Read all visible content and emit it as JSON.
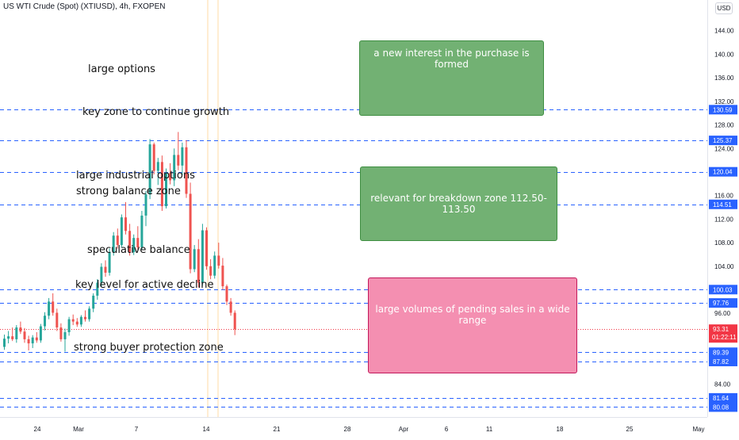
{
  "symbol_title": "US WTI Crude (Spot) (XTIUSD), 4h, FXOPEN",
  "currency": "USD",
  "colors": {
    "up": "#26a69a",
    "down": "#ef5350",
    "level_line": "#2962ff",
    "price_badge": "#2962ff",
    "current_badge": "#f23645",
    "green_box": "#72b173",
    "pink_box": "#f48fb1",
    "session_line": "#ff9800"
  },
  "annotations": {
    "large_options": "large options",
    "key_zone": "key zone to continue growth",
    "industrial_options": "large industrial options",
    "strong_balance": "strong balance zone",
    "speculative_balance": "speculative balance",
    "key_level_decline": "key level for active decline",
    "buyer_protection": "strong buyer protection zone"
  },
  "boxes": {
    "purchase_interest": "a new interest in the purchase is formed",
    "breakdown": "relevant for breakdown zone 112.50-113.50",
    "pending_sales": "large volumes of pending sales in a wide range"
  },
  "chart_data": {
    "type": "candlestick",
    "title": "US WTI Crude (Spot) (XTIUSD), 4h, FXOPEN",
    "ylim": [
      79.2,
      147.6
    ],
    "y_ticks": [
      84.0,
      88.0,
      92.0,
      96.0,
      100.0,
      104.0,
      108.0,
      112.0,
      116.0,
      120.0,
      124.0,
      128.0,
      132.0,
      136.0,
      140.0,
      144.0
    ],
    "x_ticks": [
      "24",
      "Mar",
      "7",
      "14",
      "21",
      "28",
      "Apr",
      "6",
      "11",
      "18",
      "25",
      "May"
    ],
    "level_lines": [
      {
        "value": 130.59,
        "label": "130.59"
      },
      {
        "value": 125.37,
        "label": "125.37"
      },
      {
        "value": 120.04,
        "label": "120.04"
      },
      {
        "value": 114.51,
        "label": "114.51"
      },
      {
        "value": 100.03,
        "label": "100.03"
      },
      {
        "value": 97.76,
        "label": "97.76"
      },
      {
        "value": 89.39,
        "label": "89.39"
      },
      {
        "value": 87.82,
        "label": "87.82"
      },
      {
        "value": 81.64,
        "label": "81.64"
      },
      {
        "value": 80.08,
        "label": "80.08"
      }
    ],
    "current_price": {
      "value": 93.31,
      "label": "93.31",
      "countdown": "01:22:11"
    },
    "candles_ohlc": [
      [
        90.3,
        92.4,
        89.8,
        91.7
      ],
      [
        91.7,
        93.0,
        90.9,
        92.1
      ],
      [
        92.1,
        93.6,
        91.3,
        91.6
      ],
      [
        91.6,
        94.0,
        91.0,
        93.6
      ],
      [
        93.6,
        94.6,
        92.5,
        92.9
      ],
      [
        92.9,
        93.5,
        91.0,
        91.6
      ],
      [
        91.6,
        92.2,
        89.7,
        90.9
      ],
      [
        90.9,
        92.3,
        90.1,
        91.9
      ],
      [
        91.9,
        92.8,
        91.0,
        91.4
      ],
      [
        91.4,
        94.2,
        91.0,
        93.8
      ],
      [
        93.8,
        96.2,
        93.1,
        95.6
      ],
      [
        95.6,
        98.6,
        95.0,
        98.0
      ],
      [
        98.0,
        99.4,
        95.6,
        96.1
      ],
      [
        96.1,
        96.8,
        93.0,
        93.6
      ],
      [
        93.6,
        94.3,
        91.2,
        91.6
      ],
      [
        91.6,
        93.4,
        89.5,
        92.8
      ],
      [
        92.8,
        95.4,
        92.2,
        95.0
      ],
      [
        95.0,
        95.8,
        94.0,
        94.6
      ],
      [
        94.6,
        95.2,
        93.7,
        94.1
      ],
      [
        94.1,
        95.7,
        93.7,
        95.4
      ],
      [
        95.4,
        96.5,
        94.6,
        95.0
      ],
      [
        95.0,
        97.2,
        94.6,
        96.8
      ],
      [
        96.8,
        99.4,
        96.2,
        99.0
      ],
      [
        99.0,
        101.8,
        98.3,
        101.2
      ],
      [
        101.2,
        104.5,
        100.6,
        103.9
      ],
      [
        103.9,
        105.0,
        102.2,
        102.9
      ],
      [
        102.9,
        107.0,
        102.4,
        106.4
      ],
      [
        106.4,
        109.8,
        105.8,
        109.2
      ],
      [
        109.2,
        110.4,
        107.0,
        107.6
      ],
      [
        107.6,
        112.8,
        107.2,
        112.3
      ],
      [
        112.3,
        114.9,
        109.4,
        110.0
      ],
      [
        110.0,
        111.2,
        105.8,
        106.4
      ],
      [
        106.4,
        109.4,
        105.9,
        108.8
      ],
      [
        108.8,
        110.8,
        106.8,
        107.2
      ],
      [
        107.2,
        113.4,
        106.8,
        112.6
      ],
      [
        112.6,
        116.8,
        110.8,
        116.2
      ],
      [
        116.2,
        125.6,
        115.4,
        124.7
      ],
      [
        124.7,
        125.0,
        119.6,
        120.2
      ],
      [
        120.2,
        122.4,
        117.8,
        121.7
      ],
      [
        121.7,
        122.8,
        113.4,
        114.2
      ],
      [
        114.2,
        120.6,
        113.8,
        119.8
      ],
      [
        119.8,
        121.5,
        117.9,
        118.6
      ],
      [
        118.6,
        124.0,
        117.6,
        122.9
      ],
      [
        122.9,
        126.8,
        120.3,
        121.1
      ],
      [
        121.1,
        125.0,
        119.5,
        124.2
      ],
      [
        124.2,
        125.4,
        115.6,
        116.3
      ],
      [
        116.3,
        118.2,
        102.8,
        103.5
      ],
      [
        103.5,
        107.6,
        103.0,
        106.9
      ],
      [
        106.9,
        108.6,
        100.4,
        101.2
      ],
      [
        101.2,
        111.2,
        100.7,
        110.1
      ],
      [
        110.1,
        110.6,
        103.4,
        104.0
      ],
      [
        104.0,
        105.2,
        101.8,
        102.4
      ],
      [
        102.4,
        106.5,
        101.9,
        105.8
      ],
      [
        105.8,
        108.0,
        103.6,
        104.1
      ],
      [
        104.1,
        105.4,
        100.0,
        100.6
      ],
      [
        100.6,
        100.9,
        97.4,
        98.0
      ],
      [
        98.0,
        98.6,
        95.6,
        96.1
      ],
      [
        96.1,
        96.5,
        92.3,
        93.3
      ]
    ]
  }
}
